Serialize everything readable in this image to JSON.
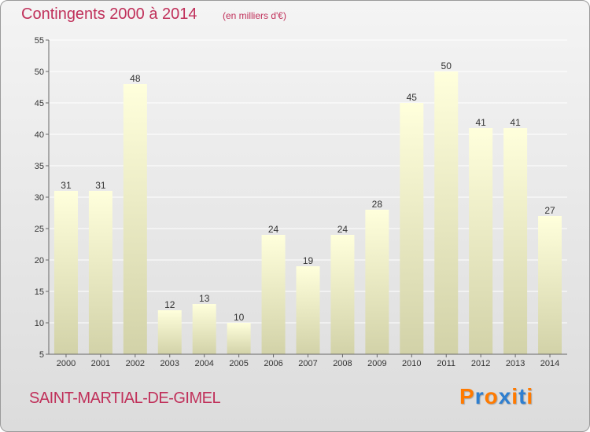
{
  "header": {
    "title": "Contingents 2000 à 2014",
    "subtitle": "(en milliers d'€)"
  },
  "footer": {
    "commune": "SAINT-MARTIAL-DE-GIMEL",
    "logo": "Proxiti"
  },
  "colors": {
    "title": "#c0305a",
    "bar_top": "#ffffdc",
    "bar_bottom": "#d2d2a8",
    "grid": "#ffffff",
    "logo_letters": [
      "#ff7a00",
      "#2e7fd0",
      "#ff7a00",
      "#2e7fd0",
      "#ff7a00",
      "#2e7fd0",
      "#ff7a00"
    ]
  },
  "chart_data": {
    "type": "bar",
    "title": "Contingents 2000 à 2014",
    "subtitle": "(en milliers d'€)",
    "categories": [
      "2000",
      "2001",
      "2002",
      "2003",
      "2004",
      "2005",
      "2006",
      "2007",
      "2008",
      "2009",
      "2010",
      "2011",
      "2012",
      "2013",
      "2014"
    ],
    "values": [
      31,
      31,
      48,
      12,
      13,
      10,
      24,
      19,
      24,
      28,
      45,
      50,
      41,
      41,
      27
    ],
    "ylim": [
      5,
      55
    ],
    "yticks": [
      5,
      10,
      15,
      20,
      25,
      30,
      35,
      40,
      45,
      50,
      55
    ],
    "grid": true,
    "data_labels": true
  }
}
